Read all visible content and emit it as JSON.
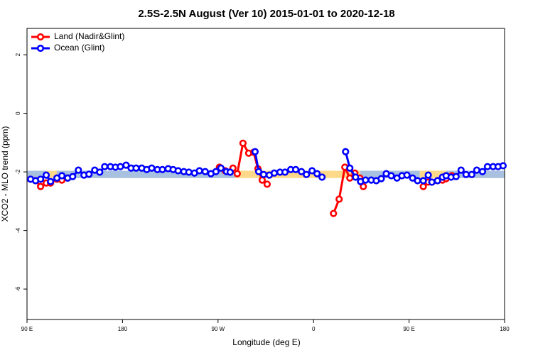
{
  "chart_data": {
    "type": "line",
    "title": "2.5S-2.5N August (Ver 10)   2015-01-01 to 2020-12-18",
    "xlabel": "Longitude (deg E)",
    "ylabel": "XCO2 - MLO trend (ppm)",
    "xlim": [
      90,
      540
    ],
    "xticks": [
      {
        "value": 90,
        "label": "90 E"
      },
      180,
      {
        "value": 270,
        "label": "90 W"
      },
      {
        "value": 360,
        "label": "0"
      },
      {
        "value": 450,
        "label": "90 E"
      },
      {
        "value": 540,
        "label": "180"
      }
    ],
    "ylim": [
      -7.04,
      2.9
    ],
    "yticks": [
      -6,
      -4,
      -2,
      0,
      2
    ],
    "legend": "top-left",
    "bands": [
      {
        "color": "#ffd98a",
        "ylim": [
          -2.21,
          -1.96
        ],
        "xranges": [
          [
            90,
            540
          ]
        ]
      },
      {
        "color": "#a9c1e0",
        "ylim": [
          -2.21,
          -1.96
        ],
        "xranges": [
          [
            90,
            108
          ],
          [
            118,
            286
          ],
          [
            404,
            460
          ],
          [
            485,
            540
          ]
        ]
      }
    ],
    "series": [
      {
        "name": "Land (Nadir&Glint)",
        "color": "#ff0000",
        "x": [
          93.4,
          98.1,
          102.8,
          108.1,
          112.2,
          118.2,
          122.9,
          128.3,
          null,
          271.3,
          276.7,
          281.4,
          284.1,
          288.1,
          293.5,
          298.9,
          303.6,
          307.6,
          311.6,
          316.3,
          null,
          378.8,
          384.1,
          389.5,
          394.2,
          398.9,
          403.6,
          406.9,
          null,
          463.4,
          468.1,
          471.5,
          476.8,
          481.5,
          484.9,
          490.3
        ],
        "values": [
          -2.25,
          -2.3,
          -2.5,
          -2.38,
          -2.38,
          -2.25,
          -2.28,
          -2.21,
          null,
          -1.84,
          -1.96,
          -2.01,
          -1.87,
          -2.06,
          -1.02,
          -1.36,
          -1.33,
          -1.89,
          -2.28,
          -2.42,
          null,
          -3.42,
          -2.93,
          -1.84,
          -2.21,
          -2.04,
          -2.21,
          -2.5,
          null,
          -2.5,
          -2.35,
          -2.35,
          -2.3,
          -2.28,
          -2.23,
          -2.13
        ]
      },
      {
        "name": "Ocean (Glint)",
        "color": "#0000ff",
        "x": [
          93.4,
          98.1,
          102.8,
          108.1,
          112.2,
          118.2,
          122.9,
          128.3,
          133.0,
          138.4,
          143.7,
          148.4,
          153.8,
          158.5,
          163.2,
          168.6,
          173.3,
          178.0,
          183.4,
          188.1,
          192.8,
          198.1,
          202.8,
          207.5,
          212.9,
          217.6,
          223.0,
          227.7,
          232.4,
          237.8,
          242.5,
          247.8,
          252.5,
          257.9,
          263.3,
          268.0,
          272.7,
          278.0,
          281.4,
          null,
          304.9,
          308.3,
          313.0,
          318.3,
          323.0,
          328.4,
          333.1,
          338.5,
          343.2,
          348.6,
          353.3,
          358.6,
          363.3,
          368.0,
          null,
          390.2,
          394.2,
          399.6,
          404.3,
          409.0,
          414.4,
          419.1,
          423.8,
          428.5,
          433.2,
          438.6,
          443.3,
          448.0,
          453.3,
          458.0,
          463.4,
          468.1,
          471.5,
          476.8,
          481.5,
          484.9,
          489.6,
          494.3,
          499.0,
          503.7,
          509.1,
          513.8,
          519.2,
          523.9,
          529.2,
          533.9,
          538.6
        ],
        "values": [
          -2.25,
          -2.3,
          -2.25,
          -2.11,
          -2.33,
          -2.21,
          -2.13,
          -2.21,
          -2.16,
          -1.94,
          -2.11,
          -2.08,
          -1.94,
          -2.01,
          -1.82,
          -1.82,
          -1.84,
          -1.82,
          -1.77,
          -1.87,
          -1.87,
          -1.87,
          -1.92,
          -1.87,
          -1.92,
          -1.92,
          -1.89,
          -1.92,
          -1.96,
          -1.99,
          -2.01,
          -2.04,
          -1.96,
          -1.99,
          -2.06,
          -1.99,
          -1.87,
          -1.99,
          -2.01,
          null,
          -1.31,
          -1.99,
          -2.09,
          -2.11,
          -2.04,
          -2.01,
          -2.01,
          -1.92,
          -1.92,
          -1.99,
          -2.09,
          -1.96,
          -2.06,
          -2.18,
          null,
          -1.31,
          -1.87,
          -2.18,
          -2.33,
          -2.28,
          -2.28,
          -2.3,
          -2.23,
          -2.06,
          -2.13,
          -2.21,
          -2.13,
          -2.11,
          -2.21,
          -2.3,
          -2.3,
          -2.11,
          -2.35,
          -2.3,
          -2.18,
          -2.13,
          -2.18,
          -2.16,
          -1.94,
          -2.09,
          -2.09,
          -1.94,
          -1.99,
          -1.82,
          -1.82,
          -1.82,
          -1.79
        ]
      }
    ]
  }
}
